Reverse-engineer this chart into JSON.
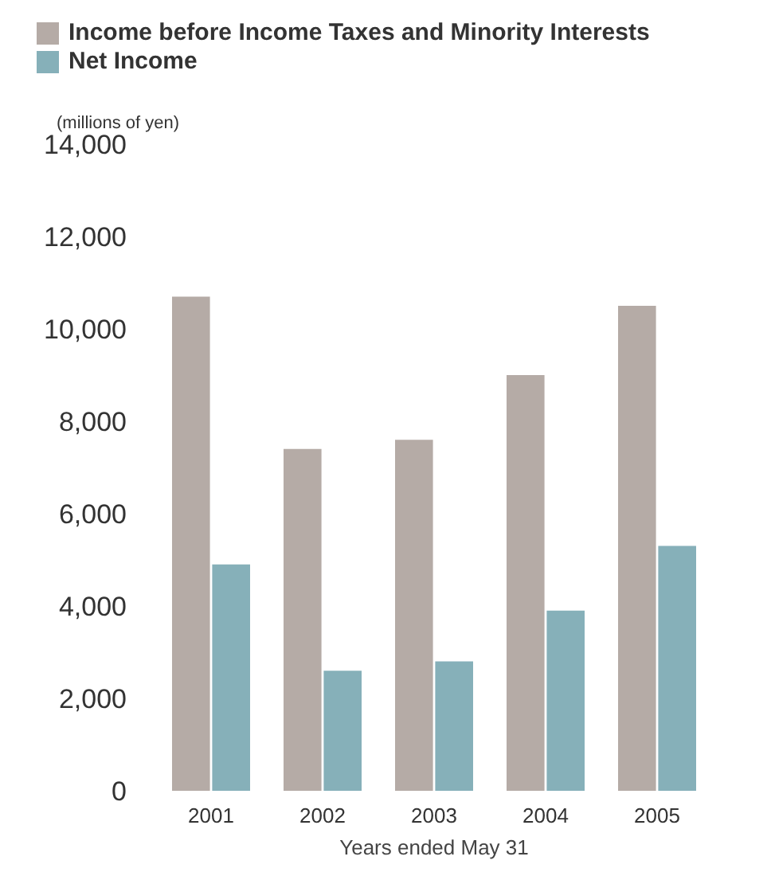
{
  "chart_data": {
    "type": "bar",
    "categories": [
      "2001",
      "2002",
      "2003",
      "2004",
      "2005"
    ],
    "series": [
      {
        "name": "Income before Income Taxes and Minority Interests",
        "color": "#b5aba6",
        "values": [
          10700,
          7400,
          7600,
          9000,
          10500
        ]
      },
      {
        "name": "Net Income",
        "color": "#86b0b9",
        "values": [
          4900,
          2600,
          2800,
          3900,
          5300
        ]
      }
    ],
    "xlabel": "Years ended May 31",
    "ylim": [
      0,
      14000
    ],
    "yticks": [
      0,
      {
        "value": 2000,
        "label": "2,000"
      },
      {
        "value": 4000,
        "label": "4,000"
      },
      {
        "value": 6000,
        "label": "6,000"
      },
      {
        "value": 8000,
        "label": "8,000"
      },
      {
        "value": 10000,
        "label": "10,000"
      },
      {
        "value": 12000,
        "label": "12,000"
      },
      {
        "value": 14000,
        "label": "14,000"
      }
    ],
    "annotations": [
      "(millions of yen)"
    ],
    "legend": "top left",
    "grid": false
  }
}
